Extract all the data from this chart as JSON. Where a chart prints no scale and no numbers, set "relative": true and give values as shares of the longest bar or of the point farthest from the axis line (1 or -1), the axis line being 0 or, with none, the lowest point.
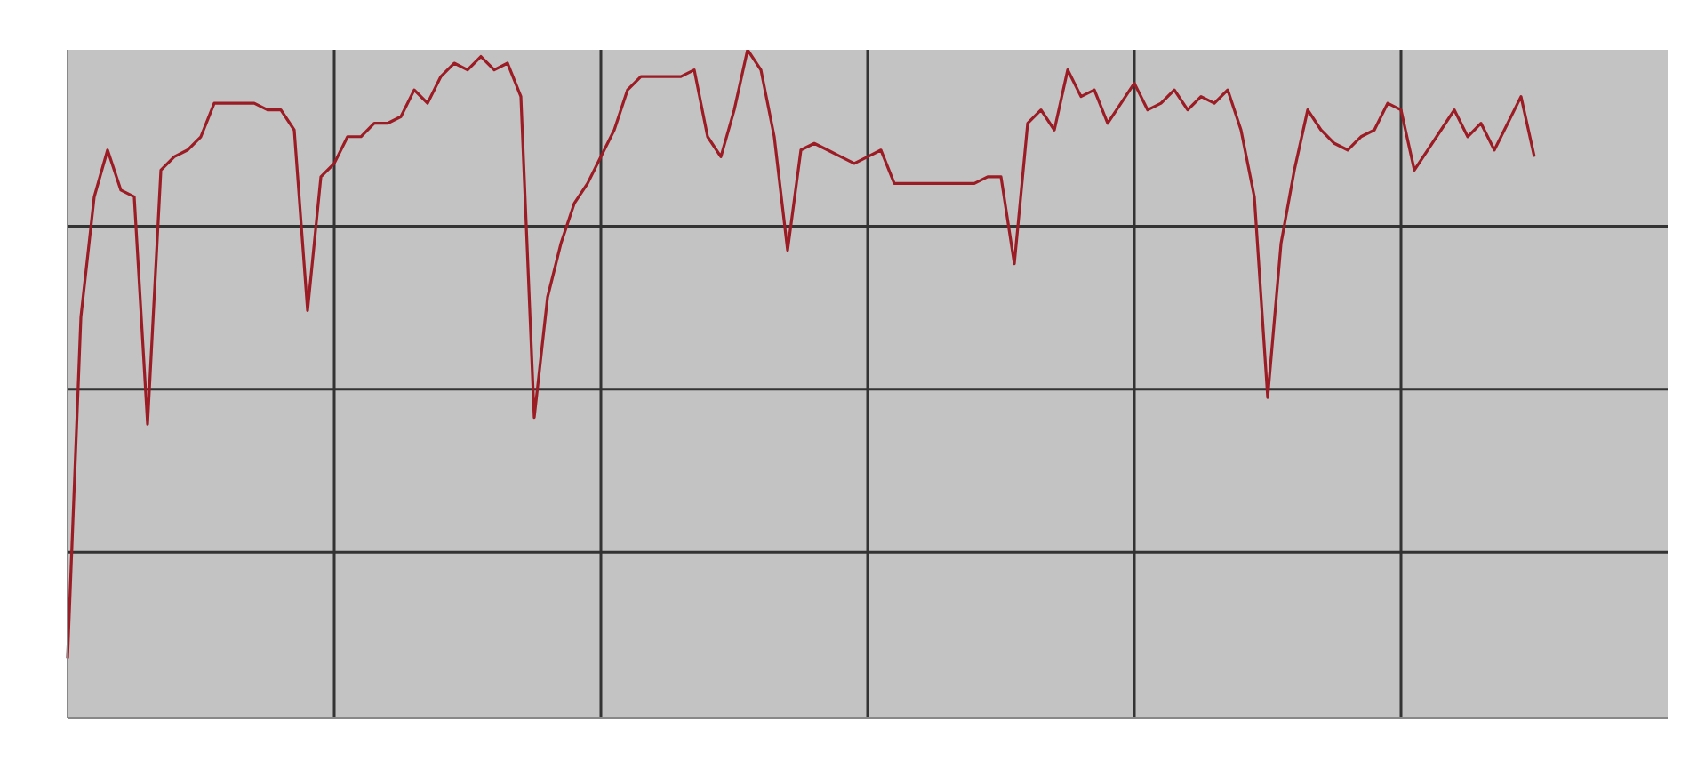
{
  "chart_data": {
    "type": "line",
    "relative": true,
    "grid": true,
    "marker": "none",
    "line_style": "solid",
    "categories": [
      null,
      null,
      null,
      null,
      null,
      null,
      null,
      null,
      null,
      null,
      null,
      null,
      null,
      null,
      null,
      null,
      null,
      null,
      null,
      null,
      null,
      null,
      null,
      null,
      null,
      null,
      null,
      null,
      null,
      null,
      null,
      null,
      null,
      null,
      null,
      null,
      null,
      null,
      null,
      null,
      null,
      null,
      null,
      null,
      null,
      null,
      null,
      null,
      null,
      null,
      null,
      null,
      null,
      null,
      null,
      null,
      null,
      null,
      null,
      null,
      null,
      null,
      null,
      null,
      null,
      null,
      null,
      null,
      null,
      null,
      null,
      null,
      null,
      null,
      null,
      null,
      null,
      null,
      null,
      null,
      null,
      null,
      null,
      null,
      null,
      null,
      null,
      null,
      null,
      null,
      null,
      null,
      null,
      null,
      null,
      null,
      null,
      null,
      null,
      null,
      null,
      null,
      null,
      null,
      null,
      null,
      null,
      null,
      null,
      null,
      null,
      null,
      null,
      null,
      null,
      null,
      null,
      null,
      null,
      null,
      null
    ],
    "series": [
      {
        "color": "#9b1c24",
        "values": [
          0.09,
          0.6,
          0.78,
          0.85,
          0.79,
          0.78,
          0.44,
          0.82,
          0.84,
          0.85,
          0.87,
          0.92,
          0.92,
          0.92,
          0.92,
          0.91,
          0.91,
          0.88,
          0.61,
          0.81,
          0.83,
          0.87,
          0.87,
          0.89,
          0.89,
          0.9,
          0.94,
          0.92,
          0.96,
          0.98,
          0.97,
          0.99,
          0.97,
          0.98,
          0.93,
          0.45,
          0.63,
          0.71,
          0.77,
          0.8,
          0.84,
          0.88,
          0.94,
          0.96,
          0.96,
          0.96,
          0.96,
          0.97,
          0.87,
          0.84,
          0.91,
          1,
          0.97,
          0.87,
          0.7,
          0.85,
          0.86,
          0.85,
          0.84,
          0.83,
          0.84,
          0.85,
          0.8,
          0.8,
          0.8,
          0.8,
          0.8,
          0.8,
          0.8,
          0.81,
          0.81,
          0.68,
          0.89,
          0.91,
          0.88,
          0.97,
          0.93,
          0.94,
          0.89,
          0.92,
          0.95,
          0.91,
          0.92,
          0.94,
          0.91,
          0.93,
          0.92,
          0.94,
          0.88,
          0.78,
          0.48,
          0.71,
          0.82,
          0.91,
          0.88,
          0.86,
          0.85,
          0.87,
          0.88,
          0.92,
          0.91,
          0.82,
          0.85,
          0.88,
          0.91,
          0.87,
          0.89,
          0.85,
          0.89,
          0.93,
          0.84,
          null,
          null,
          null,
          null,
          null,
          null,
          null,
          null,
          null,
          null
        ]
      }
    ]
  }
}
